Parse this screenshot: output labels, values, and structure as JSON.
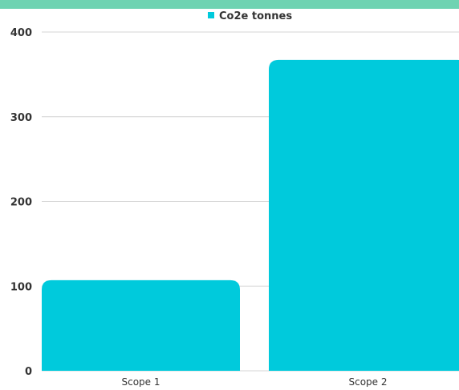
{
  "colors": {
    "accent_band": "#6fd3b2",
    "bar": "#00cadc",
    "grid": "#d4d4d4",
    "text": "#333333"
  },
  "chart_data": {
    "type": "bar",
    "categories": [
      "Scope 1",
      "Scope 2"
    ],
    "series": [
      {
        "name": "Co2e tonnes",
        "values": [
          107,
          367
        ]
      }
    ],
    "title": "",
    "xlabel": "",
    "ylabel": "",
    "ylim": [
      0,
      400
    ],
    "yticks": [
      0,
      100,
      200,
      300,
      400
    ],
    "grid": true,
    "legend_position": "top-center"
  }
}
